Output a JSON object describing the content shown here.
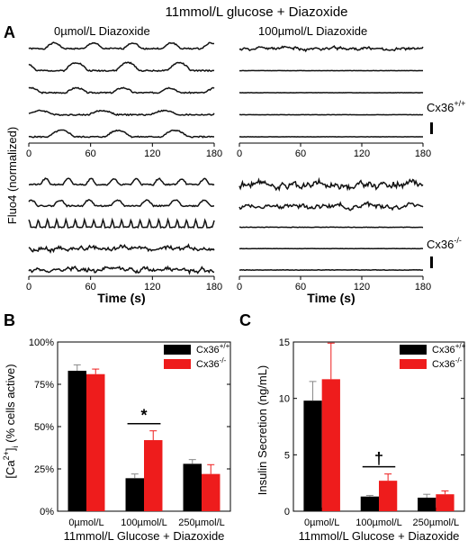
{
  "figure": {
    "top_title": "11mmol/L glucose + Diazoxide",
    "panel_labels": {
      "a": "A",
      "b": "B",
      "c": "C"
    },
    "colors": {
      "wt": "#000000",
      "ko": "#ee1c1c",
      "trace": "#111111"
    }
  },
  "chart_data": [
    {
      "type": "line",
      "panel": "A",
      "title": "11mmol/L glucose + Diazoxide",
      "ylabel": "Fluo4 (normalized)",
      "xlabel": "Time (s)",
      "x_ticks": [
        "0",
        "60",
        "120",
        "180"
      ],
      "xlim": [
        0,
        180
      ],
      "subplot_titles": [
        "0µmol/L Diazoxide",
        "100µmol/L Diazoxide"
      ],
      "group_labels": [
        "Cx36+/+",
        "Cx36-/-"
      ],
      "genotype_sup": [
        "+/+",
        "-/-"
      ],
      "groups": [
        {
          "name": "Cx36+/+",
          "panels": [
            {
              "condition": "0µmol/L Diazoxide",
              "traces": [
                {
                  "period": 38,
                  "amp": 0.7,
                  "kind": "slow",
                  "seed": 1
                },
                {
                  "period": 50,
                  "amp": 1.0,
                  "kind": "slow",
                  "seed": 2
                },
                {
                  "period": 45,
                  "amp": 0.6,
                  "kind": "slow",
                  "seed": 3
                },
                {
                  "period": 60,
                  "amp": 0.5,
                  "kind": "slow",
                  "seed": 4
                },
                {
                  "period": 55,
                  "amp": 0.8,
                  "kind": "slow",
                  "seed": 5
                }
              ]
            },
            {
              "condition": "100µmol/L Diazoxide",
              "traces": [
                {
                  "period": 0,
                  "amp": 0.6,
                  "kind": "noise",
                  "seed": 11
                },
                {
                  "period": 0,
                  "amp": 0.15,
                  "kind": "flat",
                  "seed": 12
                },
                {
                  "period": 0,
                  "amp": 0.15,
                  "kind": "flat",
                  "seed": 13
                },
                {
                  "period": 0,
                  "amp": 0.15,
                  "kind": "flat",
                  "seed": 14
                },
                {
                  "period": 0,
                  "amp": 0.15,
                  "kind": "flat",
                  "seed": 15
                }
              ]
            }
          ]
        },
        {
          "name": "Cx36-/-",
          "panels": [
            {
              "condition": "0µmol/L Diazoxide",
              "traces": [
                {
                  "period": 22,
                  "amp": 0.7,
                  "kind": "slow",
                  "seed": 21
                },
                {
                  "period": 28,
                  "amp": 0.7,
                  "kind": "slow",
                  "seed": 22
                },
                {
                  "period": 9,
                  "amp": 0.9,
                  "kind": "spike",
                  "seed": 23
                },
                {
                  "period": 0,
                  "amp": 0.9,
                  "kind": "noise",
                  "seed": 24
                },
                {
                  "period": 0,
                  "amp": 0.9,
                  "kind": "noise",
                  "seed": 25
                }
              ]
            },
            {
              "condition": "100µmol/L Diazoxide",
              "traces": [
                {
                  "period": 0,
                  "amp": 1.3,
                  "kind": "noise",
                  "seed": 31
                },
                {
                  "period": 0,
                  "amp": 0.9,
                  "kind": "noise",
                  "seed": 32
                },
                {
                  "period": 0,
                  "amp": 0.2,
                  "kind": "flat",
                  "seed": 33
                },
                {
                  "period": 0,
                  "amp": 0.2,
                  "kind": "flat",
                  "seed": 34
                },
                {
                  "period": 0,
                  "amp": 0.2,
                  "kind": "flat",
                  "seed": 35
                }
              ]
            }
          ]
        }
      ]
    },
    {
      "type": "bar",
      "panel": "B",
      "title": "",
      "ylabel_pre": "[Ca",
      "ylabel_sup": "2+",
      "ylabel_mid": "]",
      "ylabel_sub": "i",
      "ylabel_post": " (% cells active)",
      "xlabel": "11mmol/L Glucose + Diazoxide",
      "categories": [
        "0µmol/L",
        "100µmol/L",
        "250µmol/L"
      ],
      "ylim": [
        0,
        100
      ],
      "y_ticks": [
        0,
        25,
        50,
        75,
        100
      ],
      "y_tick_labels": [
        "0%",
        "25%",
        "50%",
        "75%",
        "100%"
      ],
      "series": [
        {
          "name": "Cx36+/+",
          "color": "#000000",
          "values": [
            83,
            19.5,
            28
          ],
          "errors": [
            3.5,
            2.5,
            2.5
          ]
        },
        {
          "name": "Cx36-/-",
          "color": "#ee1c1c",
          "values": [
            81,
            42,
            22
          ],
          "errors": [
            3,
            5.5,
            5.5
          ]
        }
      ],
      "legend_sup": [
        "+/+",
        "-/-"
      ],
      "legend_position": "top-right",
      "annotation": {
        "text": "*",
        "category_index": 1
      }
    },
    {
      "type": "bar",
      "panel": "C",
      "title": "",
      "ylabel": "Insulin Secretion (ng/mL)",
      "xlabel": "11mmol/L Glucose + Diazoxide",
      "categories": [
        "0µmol/L",
        "100µmol/L",
        "250µmol/L"
      ],
      "ylim": [
        0,
        15
      ],
      "y_ticks": [
        0,
        5,
        10,
        15
      ],
      "y_tick_labels": [
        "0",
        "5",
        "10",
        "15"
      ],
      "series": [
        {
          "name": "Cx36+/+",
          "color": "#000000",
          "values": [
            9.8,
            1.3,
            1.2
          ],
          "errors": [
            1.7,
            0.1,
            0.3
          ]
        },
        {
          "name": "Cx36-/-",
          "color": "#ee1c1c",
          "values": [
            11.7,
            2.7,
            1.5
          ],
          "errors": [
            3.2,
            0.6,
            0.3
          ]
        }
      ],
      "legend_sup": [
        "+/+",
        "-/-"
      ],
      "legend_position": "top-right",
      "annotation": {
        "text": "†",
        "category_index": 1
      }
    }
  ]
}
